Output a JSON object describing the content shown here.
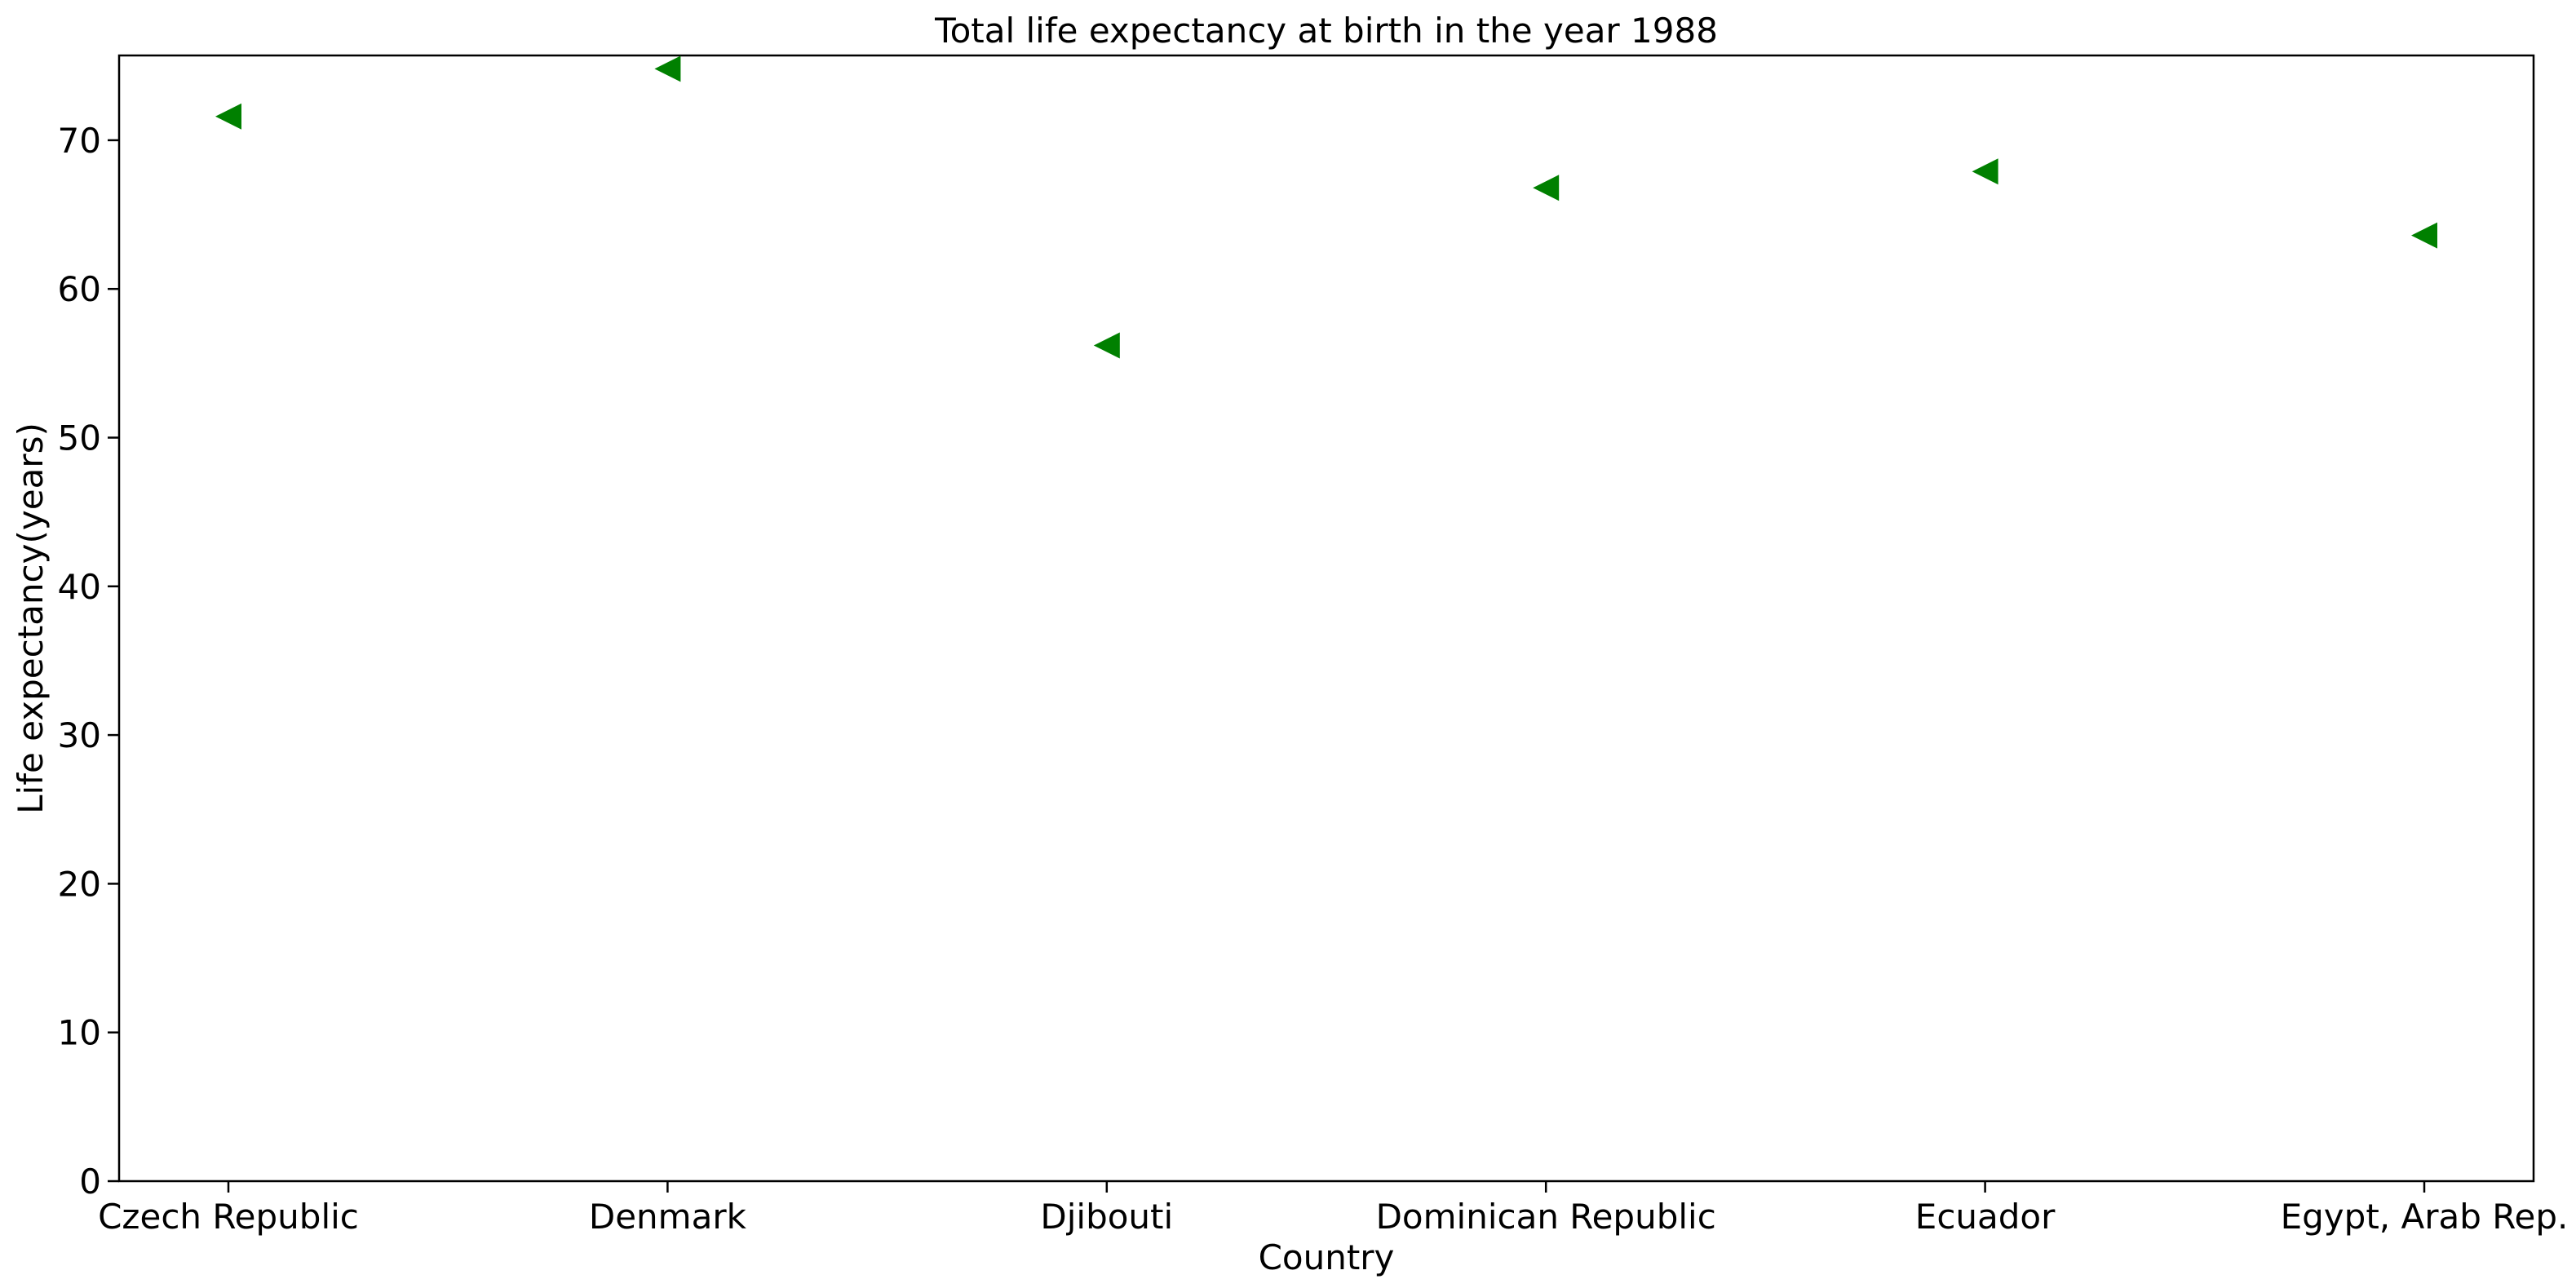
{
  "chart_data": {
    "type": "scatter",
    "title": "Total life expectancy at birth in the year 1988",
    "xlabel": "Country",
    "ylabel": "Life expectancy(years)",
    "categories": [
      "Czech Republic",
      "Denmark",
      "Djibouti",
      "Dominican Republic",
      "Ecuador",
      "Egypt, Arab Rep."
    ],
    "values": [
      71.6,
      74.8,
      56.2,
      66.8,
      67.9,
      63.6
    ],
    "ylim": [
      0,
      75.7
    ],
    "yticks": [
      0,
      10,
      20,
      30,
      40,
      50,
      60,
      70
    ],
    "marker": "triangle-left",
    "marker_color": "#008000",
    "grid": false,
    "legend": "none"
  }
}
